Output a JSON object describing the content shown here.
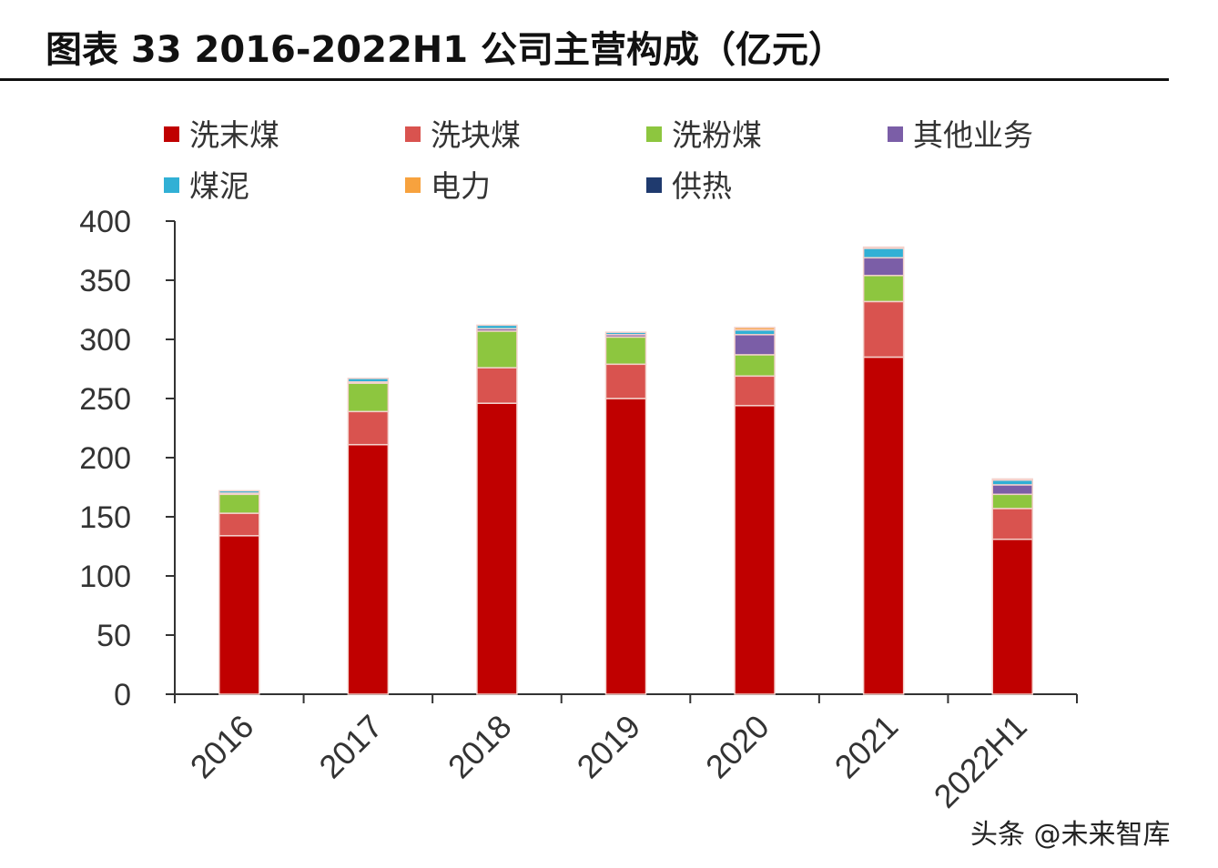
{
  "title": "图表 33 2016-2022H1 公司主营构成（亿元）",
  "watermark": "头条 @未来智库",
  "chart_data": {
    "type": "bar",
    "stacked": true,
    "title": "图表 33 2016-2022H1 公司主营构成（亿元）",
    "xlabel": "",
    "ylabel": "",
    "categories": [
      "2016",
      "2017",
      "2018",
      "2019",
      "2020",
      "2021",
      "2022H1"
    ],
    "ylim": [
      0,
      400
    ],
    "yticks": [
      0,
      50,
      100,
      150,
      200,
      250,
      300,
      350,
      400
    ],
    "grid": false,
    "legend_position": "top",
    "series": [
      {
        "name": "洗末煤",
        "color": "#c00000",
        "values": [
          134,
          211,
          246,
          250,
          244,
          285,
          131
        ]
      },
      {
        "name": "洗块煤",
        "color": "#d9534f",
        "values": [
          19,
          28,
          30,
          29,
          25,
          47,
          26
        ]
      },
      {
        "name": "洗粉煤",
        "color": "#8dc63f",
        "values": [
          16,
          24,
          31,
          23,
          18,
          22,
          12
        ]
      },
      {
        "name": "其他业务",
        "color": "#7b5ea7",
        "values": [
          1,
          1,
          2,
          2,
          17,
          15,
          8
        ]
      },
      {
        "name": "煤泥",
        "color": "#31b0d5",
        "values": [
          2,
          3,
          3,
          2,
          4,
          8,
          4
        ]
      },
      {
        "name": "电力",
        "color": "#f7a23e",
        "values": [
          0,
          0,
          0,
          0,
          2,
          1,
          0
        ]
      },
      {
        "name": "供热",
        "color": "#1f3a6e",
        "values": [
          0,
          0,
          0,
          0,
          0,
          0,
          1
        ]
      }
    ]
  }
}
